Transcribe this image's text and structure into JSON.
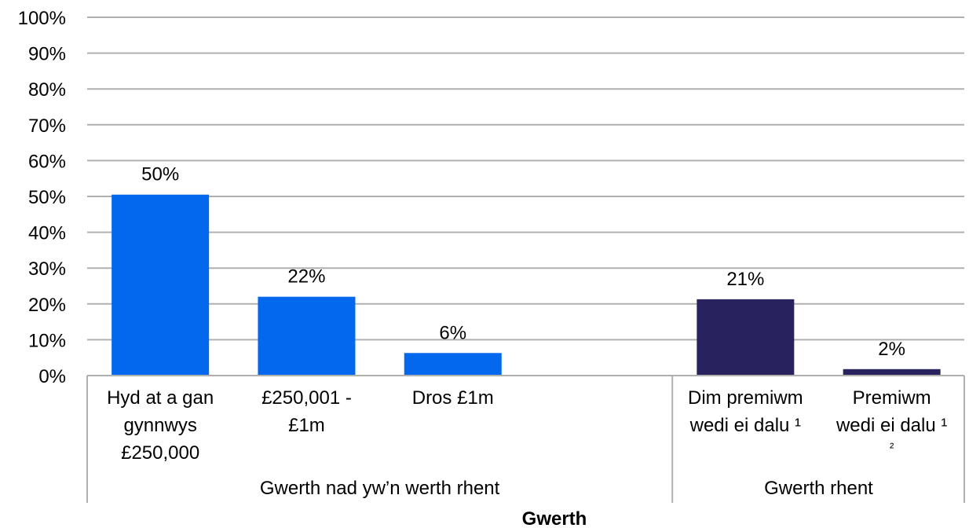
{
  "chart_data": {
    "type": "bar",
    "xlabel": "Gwerth",
    "ylim": [
      0,
      100
    ],
    "y_ticks": [
      "0%",
      "10%",
      "20%",
      "30%",
      "40%",
      "50%",
      "60%",
      "70%",
      "80%",
      "90%",
      "100%"
    ],
    "grid": true,
    "categories": [
      {
        "label": [
          "Hyd at a gan",
          "gynnwys",
          "£250,000"
        ],
        "group": 0,
        "value": 50.5,
        "data_label": "50%"
      },
      {
        "label": [
          "£250,001 -",
          "£1m"
        ],
        "group": 0,
        "value": 22,
        "data_label": "22%"
      },
      {
        "label": [
          "Dros £1m"
        ],
        "group": 0,
        "value": 6.3,
        "data_label": "6%"
      },
      {
        "label": [
          "Dim premiwm",
          "wedi ei dalu ¹"
        ],
        "group": 1,
        "value": 21.3,
        "data_label": "21%"
      },
      {
        "label": [
          "Premiwm",
          "wedi ei dalu ¹",
          "²"
        ],
        "group": 1,
        "value": 1.8,
        "data_label": "2%"
      }
    ],
    "groups": [
      "Gwerth nad yw’n werth rhent",
      "Gwerth rhent"
    ],
    "colors": [
      "#0368EE",
      "#28235E"
    ]
  }
}
